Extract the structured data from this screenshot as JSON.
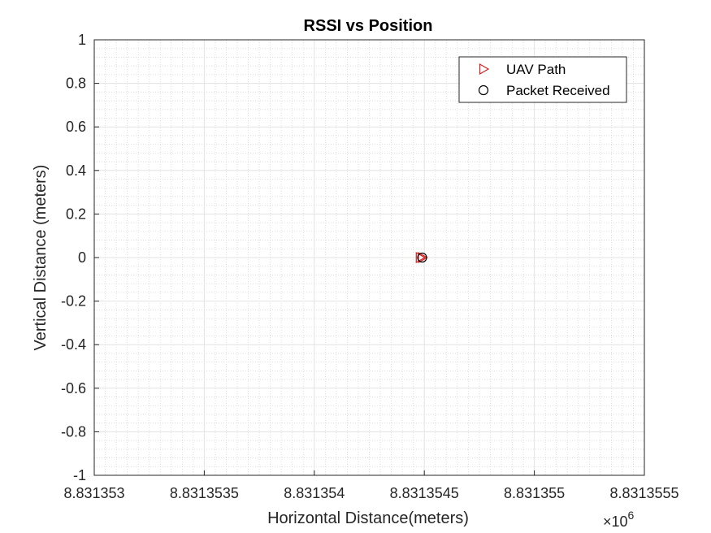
{
  "chart_data": {
    "type": "scatter",
    "title": "RSSI vs Position",
    "xlabel": "Horizontal Distance(meters)",
    "ylabel": "Vertical Distance (meters)",
    "x_multiplier": {
      "base": "×10",
      "exponent": "6"
    },
    "xlim": [
      8.831353,
      8.8313555
    ],
    "ylim": [
      -1,
      1
    ],
    "x_ticks": [
      8.831353,
      8.8313535,
      8.831354,
      8.8313545,
      8.831355,
      8.8313555
    ],
    "x_tick_labels": [
      "8.831353",
      "8.8313535",
      "8.831354",
      "8.8313545",
      "8.831355",
      "8.8313555"
    ],
    "y_ticks": [
      1,
      0.8,
      0.6,
      0.4,
      0.2,
      0,
      -0.2,
      -0.4,
      -0.6,
      -0.8,
      -1
    ],
    "y_tick_labels": [
      "1",
      "0.8",
      "0.6",
      "0.4",
      "0.2",
      "0",
      "-0.2",
      "-0.4",
      "-0.6",
      "-0.8",
      "-1"
    ],
    "grid": true,
    "minor_grid": true,
    "legend_position": "top-right",
    "series": [
      {
        "name": "UAV Path",
        "marker": "triangle-right",
        "color": "#d62020",
        "points": [
          {
            "x": 8.83135448,
            "y": 0
          },
          {
            "x": 8.83135449,
            "y": 0
          }
        ]
      },
      {
        "name": "Packet Received",
        "marker": "circle",
        "color": "#000000",
        "points": [
          {
            "x": 8.83135449,
            "y": 0
          }
        ]
      }
    ]
  }
}
